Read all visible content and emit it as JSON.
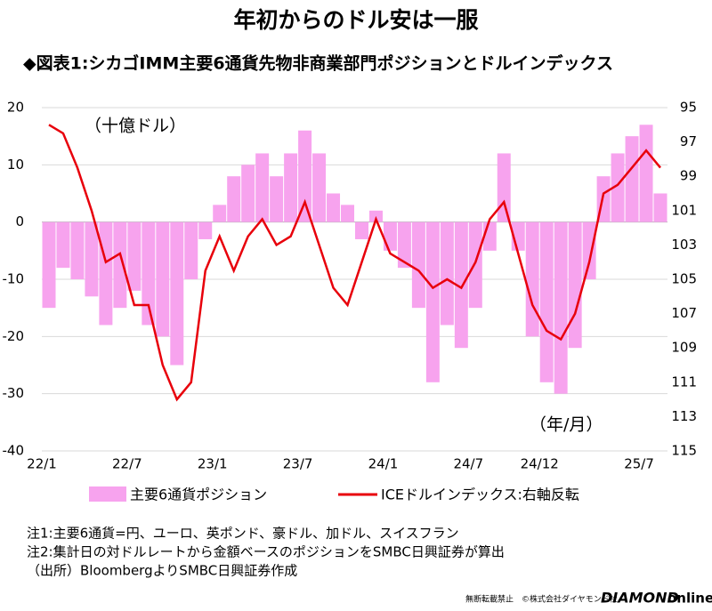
{
  "chart_data": {
    "type": "bar_line",
    "title": "年初からのドル安は一服",
    "subtitle": "◆図表1:シカゴIMM主要6通貨先物非商業部門ポジションとドルインデックス",
    "annotations": [
      "（十億ドル）",
      "（年/月）"
    ],
    "categories": [
      "22/1",
      null,
      null,
      null,
      null,
      null,
      "22/7",
      null,
      null,
      null,
      null,
      null,
      "23/1",
      null,
      null,
      null,
      null,
      null,
      "23/7",
      null,
      null,
      null,
      null,
      null,
      "24/1",
      null,
      null,
      null,
      null,
      null,
      "24/7",
      null,
      null,
      null,
      null,
      "24/12",
      null,
      null,
      null,
      null,
      null,
      null,
      "25/7",
      null
    ],
    "series": [
      {
        "name": "主要6通貨ポジション",
        "type": "bar",
        "color": "#f7a3ee",
        "axis": "y",
        "values": [
          -15,
          -8,
          -10,
          -13,
          -18,
          -15,
          -12,
          -18,
          -20,
          -25,
          -10,
          -3,
          3,
          8,
          10,
          12,
          8,
          12,
          16,
          12,
          5,
          3,
          -3,
          2,
          -5,
          -8,
          -15,
          -28,
          -18,
          -22,
          -15,
          -5,
          12,
          -5,
          -20,
          -28,
          -30,
          -22,
          -10,
          8,
          12,
          15,
          17,
          5
        ]
      },
      {
        "name": "ICEドルインデックス:右軸反転",
        "type": "line",
        "color": "#e8000b",
        "axis": "y2",
        "values": [
          96,
          96.5,
          98.5,
          101,
          104,
          103.5,
          106.5,
          106.5,
          110,
          112,
          111,
          104.5,
          102.5,
          104.5,
          102.5,
          101.5,
          103,
          102.5,
          100.5,
          103,
          105.5,
          106.5,
          104,
          101.5,
          103.5,
          104,
          104.5,
          105.5,
          105,
          105.5,
          104,
          101.5,
          100.5,
          103.5,
          106.5,
          108,
          108.5,
          107,
          104,
          100,
          99.5,
          98.5,
          97.5,
          98.5
        ]
      }
    ],
    "ylim": [
      -40,
      20
    ],
    "yticks": [
      -40,
      -30,
      -20,
      -10,
      0,
      10,
      20
    ],
    "y2lim": [
      95,
      115
    ],
    "y2ticks": [
      95,
      97,
      99,
      101,
      103,
      105,
      107,
      109,
      111,
      113,
      115
    ],
    "y2_inverted": true,
    "grid": true,
    "notes": [
      "注1:主要6通貨=円、ユーロ、英ポンド、豪ドル、加ドル、スイスフラン",
      "注2:集計日の対ドルレートから金額ベースのポジションをSMBC日興証券が算出",
      "（出所）BloombergよりSMBC日興証券作成"
    ]
  },
  "footer": {
    "copyright": "無断転載禁止　©株式会社ダイヤモンド社",
    "logo": [
      "DIAMOND",
      "online"
    ]
  }
}
